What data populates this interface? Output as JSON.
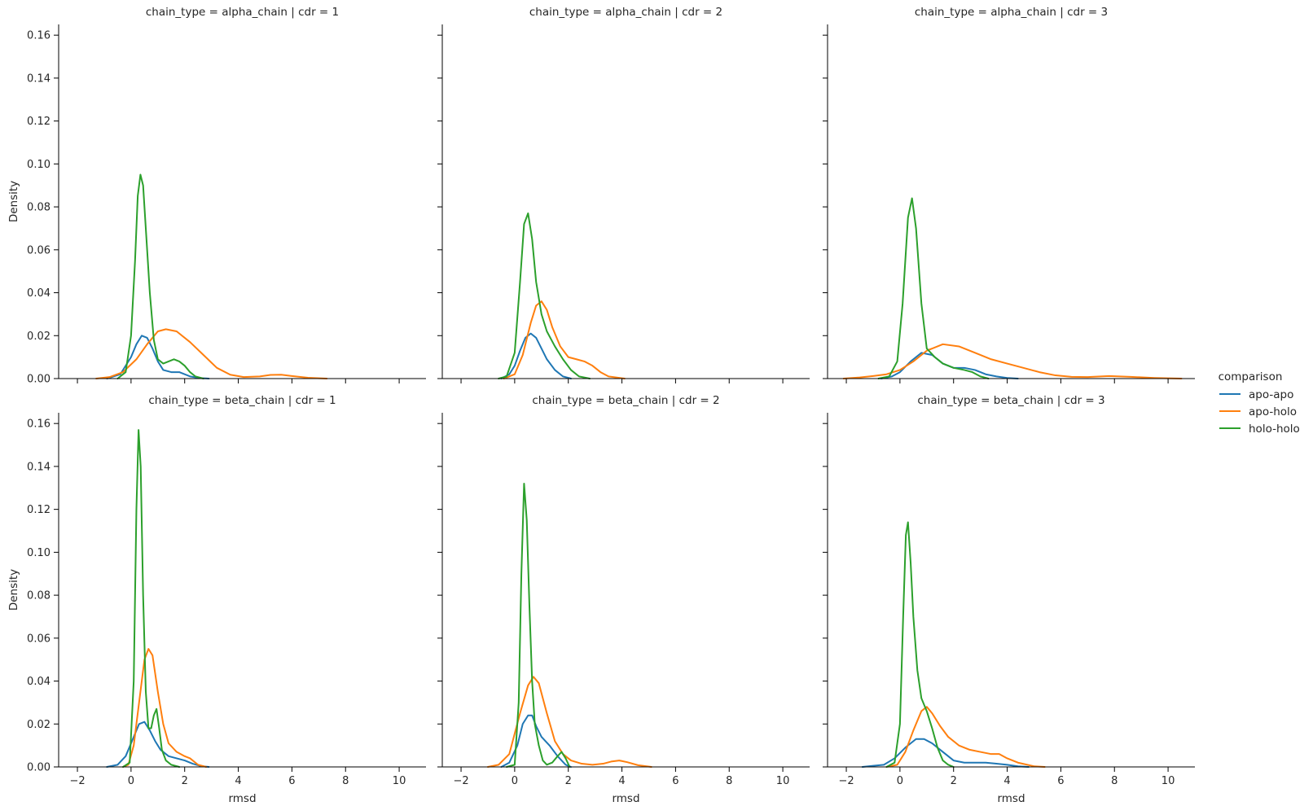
{
  "legend": {
    "title": "comparison",
    "entries": [
      {
        "label": "apo-apo",
        "color": "#1f77b4"
      },
      {
        "label": "apo-holo",
        "color": "#ff7f0e"
      },
      {
        "label": "holo-holo",
        "color": "#2ca02c"
      }
    ]
  },
  "axes": {
    "xlabel": "rmsd",
    "ylabel": "Density",
    "xlim": [
      -2.7,
      11.0
    ],
    "ylim": [
      0,
      0.165
    ],
    "xticks": [
      -2,
      0,
      2,
      4,
      6,
      8,
      10
    ],
    "yticks": [
      0.0,
      0.02,
      0.04,
      0.06,
      0.08,
      0.1,
      0.12,
      0.14,
      0.16
    ]
  },
  "chart_data": [
    {
      "type": "line",
      "title": "chain_type = alpha_chain | cdr = 1",
      "series": [
        {
          "name": "apo-apo",
          "x": [
            -0.9,
            -0.4,
            0.0,
            0.2,
            0.4,
            0.6,
            0.8,
            1.0,
            1.2,
            1.5,
            1.8,
            2.2,
            2.6,
            2.9
          ],
          "y": [
            0.0,
            0.002,
            0.01,
            0.016,
            0.02,
            0.019,
            0.014,
            0.008,
            0.004,
            0.003,
            0.003,
            0.001,
            0.0002,
            0.0
          ]
        },
        {
          "name": "apo-holo",
          "x": [
            -1.3,
            -0.8,
            -0.3,
            0.2,
            0.6,
            1.0,
            1.3,
            1.7,
            2.2,
            2.7,
            3.2,
            3.7,
            4.2,
            4.8,
            5.2,
            5.6,
            6.0,
            6.6,
            7.3
          ],
          "y": [
            0.0,
            0.0007,
            0.003,
            0.009,
            0.016,
            0.022,
            0.023,
            0.022,
            0.017,
            0.011,
            0.005,
            0.0018,
            0.0007,
            0.001,
            0.0017,
            0.0018,
            0.0012,
            0.0004,
            0.0
          ]
        },
        {
          "name": "holo-holo",
          "x": [
            -0.5,
            -0.2,
            0.0,
            0.15,
            0.25,
            0.35,
            0.45,
            0.55,
            0.7,
            0.85,
            1.0,
            1.2,
            1.4,
            1.6,
            1.8,
            2.0,
            2.2,
            2.4,
            2.7
          ],
          "y": [
            0.0,
            0.003,
            0.02,
            0.055,
            0.085,
            0.095,
            0.09,
            0.07,
            0.04,
            0.018,
            0.009,
            0.007,
            0.008,
            0.009,
            0.008,
            0.006,
            0.003,
            0.001,
            0.0
          ]
        }
      ]
    },
    {
      "type": "line",
      "title": "chain_type = alpha_chain | cdr = 2",
      "series": [
        {
          "name": "apo-apo",
          "x": [
            -0.5,
            -0.2,
            0.0,
            0.2,
            0.4,
            0.6,
            0.8,
            1.0,
            1.2,
            1.5,
            1.8,
            2.1
          ],
          "y": [
            0.0,
            0.002,
            0.006,
            0.013,
            0.019,
            0.021,
            0.019,
            0.014,
            0.009,
            0.004,
            0.001,
            0.0
          ]
        },
        {
          "name": "apo-holo",
          "x": [
            -0.4,
            0.0,
            0.3,
            0.6,
            0.8,
            1.0,
            1.2,
            1.4,
            1.7,
            2.0,
            2.3,
            2.6,
            2.9,
            3.2,
            3.5,
            4.1
          ],
          "y": [
            0.0,
            0.002,
            0.011,
            0.026,
            0.034,
            0.036,
            0.032,
            0.024,
            0.015,
            0.01,
            0.009,
            0.008,
            0.006,
            0.003,
            0.001,
            0.0
          ]
        },
        {
          "name": "holo-holo",
          "x": [
            -0.6,
            -0.3,
            0.0,
            0.2,
            0.35,
            0.5,
            0.65,
            0.8,
            1.0,
            1.2,
            1.5,
            1.8,
            2.1,
            2.4,
            2.8
          ],
          "y": [
            0.0,
            0.001,
            0.012,
            0.045,
            0.072,
            0.077,
            0.065,
            0.045,
            0.03,
            0.022,
            0.015,
            0.009,
            0.004,
            0.001,
            0.0
          ]
        }
      ]
    },
    {
      "type": "line",
      "title": "chain_type = alpha_chain | cdr = 3",
      "series": [
        {
          "name": "apo-apo",
          "x": [
            -0.7,
            -0.3,
            0.0,
            0.4,
            0.8,
            1.2,
            1.6,
            2.0,
            2.4,
            2.8,
            3.2,
            3.6,
            4.0,
            4.4
          ],
          "y": [
            0.0,
            0.001,
            0.003,
            0.008,
            0.012,
            0.011,
            0.007,
            0.005,
            0.005,
            0.004,
            0.002,
            0.001,
            0.0003,
            0.0
          ]
        },
        {
          "name": "apo-holo",
          "x": [
            -2.1,
            -1.5,
            -1.0,
            -0.5,
            0.0,
            0.5,
            1.0,
            1.6,
            2.2,
            2.8,
            3.4,
            4.0,
            4.6,
            5.2,
            5.8,
            6.4,
            7.0,
            7.8,
            8.6,
            9.5,
            10.5
          ],
          "y": [
            0.0,
            0.0005,
            0.0012,
            0.002,
            0.004,
            0.008,
            0.013,
            0.016,
            0.015,
            0.012,
            0.009,
            0.007,
            0.005,
            0.003,
            0.0015,
            0.0008,
            0.0007,
            0.0012,
            0.0008,
            0.0003,
            0.0
          ]
        },
        {
          "name": "holo-holo",
          "x": [
            -0.8,
            -0.4,
            -0.1,
            0.1,
            0.3,
            0.45,
            0.6,
            0.8,
            1.0,
            1.3,
            1.6,
            2.0,
            2.4,
            2.7,
            3.0,
            3.3
          ],
          "y": [
            0.0,
            0.001,
            0.008,
            0.035,
            0.075,
            0.084,
            0.07,
            0.035,
            0.014,
            0.01,
            0.007,
            0.005,
            0.004,
            0.003,
            0.001,
            0.0
          ]
        }
      ]
    },
    {
      "type": "line",
      "title": "chain_type = beta_chain | cdr = 1",
      "series": [
        {
          "name": "apo-apo",
          "x": [
            -0.9,
            -0.5,
            -0.2,
            0.1,
            0.3,
            0.5,
            0.7,
            0.9,
            1.1,
            1.4,
            1.7,
            2.0,
            2.3,
            2.6,
            2.9
          ],
          "y": [
            0.0,
            0.001,
            0.005,
            0.014,
            0.02,
            0.021,
            0.017,
            0.012,
            0.008,
            0.005,
            0.004,
            0.003,
            0.0015,
            0.0004,
            0.0
          ]
        },
        {
          "name": "apo-holo",
          "x": [
            -0.3,
            -0.1,
            0.1,
            0.3,
            0.5,
            0.65,
            0.8,
            1.0,
            1.2,
            1.4,
            1.7,
            2.0,
            2.2,
            2.5,
            2.8
          ],
          "y": [
            0.0,
            0.001,
            0.01,
            0.03,
            0.05,
            0.055,
            0.052,
            0.035,
            0.02,
            0.011,
            0.007,
            0.005,
            0.004,
            0.001,
            0.0
          ]
        },
        {
          "name": "holo-holo",
          "x": [
            -0.3,
            -0.05,
            0.1,
            0.2,
            0.28,
            0.36,
            0.45,
            0.55,
            0.65,
            0.75,
            0.85,
            0.95,
            1.05,
            1.15,
            1.3,
            1.5,
            1.8
          ],
          "y": [
            0.0,
            0.002,
            0.04,
            0.12,
            0.157,
            0.14,
            0.08,
            0.035,
            0.018,
            0.018,
            0.024,
            0.027,
            0.018,
            0.008,
            0.003,
            0.001,
            0.0
          ]
        }
      ]
    },
    {
      "type": "line",
      "title": "chain_type = beta_chain | cdr = 2",
      "series": [
        {
          "name": "apo-apo",
          "x": [
            -0.5,
            -0.2,
            0.1,
            0.3,
            0.5,
            0.65,
            0.8,
            1.0,
            1.3,
            1.6,
            1.9,
            2.1
          ],
          "y": [
            0.0,
            0.002,
            0.01,
            0.02,
            0.024,
            0.024,
            0.019,
            0.014,
            0.01,
            0.005,
            0.001,
            0.0
          ]
        },
        {
          "name": "apo-holo",
          "x": [
            -1.0,
            -0.6,
            -0.2,
            0.2,
            0.5,
            0.7,
            0.9,
            1.2,
            1.5,
            1.8,
            2.1,
            2.5,
            2.9,
            3.3,
            3.6,
            3.9,
            4.2,
            4.6,
            5.1
          ],
          "y": [
            0.0,
            0.001,
            0.006,
            0.025,
            0.038,
            0.042,
            0.039,
            0.025,
            0.012,
            0.006,
            0.003,
            0.0015,
            0.001,
            0.0015,
            0.0025,
            0.003,
            0.0022,
            0.0008,
            0.0
          ]
        },
        {
          "name": "holo-holo",
          "x": [
            -0.3,
            0.0,
            0.15,
            0.25,
            0.35,
            0.45,
            0.55,
            0.65,
            0.75,
            0.9,
            1.05,
            1.2,
            1.4,
            1.6,
            1.75,
            1.9,
            2.05
          ],
          "y": [
            0.0,
            0.001,
            0.03,
            0.09,
            0.132,
            0.115,
            0.075,
            0.04,
            0.02,
            0.01,
            0.003,
            0.001,
            0.002,
            0.005,
            0.007,
            0.004,
            0.0
          ]
        }
      ]
    },
    {
      "type": "line",
      "title": "chain_type = beta_chain | cdr = 3",
      "series": [
        {
          "name": "apo-apo",
          "x": [
            -1.4,
            -1.0,
            -0.6,
            -0.2,
            0.2,
            0.6,
            0.9,
            1.2,
            1.6,
            2.0,
            2.4,
            2.8,
            3.2,
            3.6,
            4.0,
            4.4,
            4.8
          ],
          "y": [
            0.0,
            0.0005,
            0.001,
            0.004,
            0.009,
            0.013,
            0.013,
            0.011,
            0.007,
            0.003,
            0.002,
            0.002,
            0.002,
            0.0015,
            0.001,
            0.0003,
            0.0
          ]
        },
        {
          "name": "apo-holo",
          "x": [
            -0.5,
            -0.1,
            0.2,
            0.5,
            0.8,
            1.0,
            1.2,
            1.5,
            1.8,
            2.2,
            2.6,
            3.0,
            3.4,
            3.7,
            4.0,
            4.4,
            5.0,
            5.4
          ],
          "y": [
            0.0,
            0.001,
            0.007,
            0.017,
            0.026,
            0.028,
            0.025,
            0.019,
            0.014,
            0.01,
            0.008,
            0.007,
            0.006,
            0.006,
            0.004,
            0.002,
            0.0003,
            0.0
          ]
        },
        {
          "name": "holo-holo",
          "x": [
            -0.5,
            -0.2,
            0.0,
            0.12,
            0.22,
            0.3,
            0.4,
            0.5,
            0.65,
            0.8,
            1.0,
            1.2,
            1.4,
            1.6,
            1.8,
            2.0
          ],
          "y": [
            0.0,
            0.002,
            0.02,
            0.07,
            0.108,
            0.114,
            0.095,
            0.07,
            0.045,
            0.032,
            0.026,
            0.018,
            0.009,
            0.003,
            0.001,
            0.0
          ]
        }
      ]
    }
  ]
}
